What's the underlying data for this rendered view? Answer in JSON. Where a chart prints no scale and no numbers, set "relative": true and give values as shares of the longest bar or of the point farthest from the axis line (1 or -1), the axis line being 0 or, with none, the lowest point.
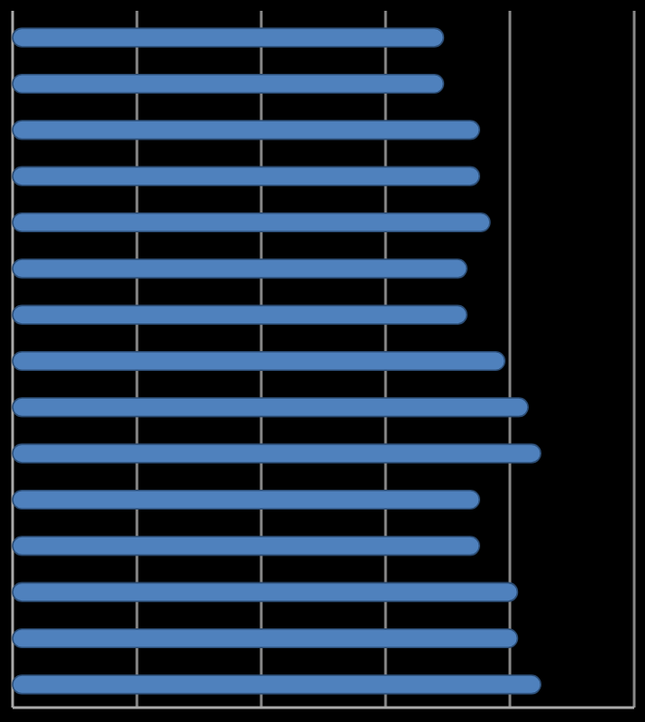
{
  "chart_data": {
    "type": "bar",
    "orientation": "horizontal",
    "relative": true,
    "grid": "x",
    "categories": [
      null,
      null,
      null,
      null,
      null,
      null,
      null,
      null,
      null,
      null,
      null,
      null,
      null,
      null,
      null
    ],
    "series": [
      {
        "color": "#4f81bd",
        "values": [
          0.816,
          0.816,
          0.884,
          0.884,
          0.904,
          0.86,
          0.86,
          0.932,
          0.976,
          1,
          0.884,
          0.884,
          0.956,
          0.956,
          1
        ]
      }
    ]
  }
}
